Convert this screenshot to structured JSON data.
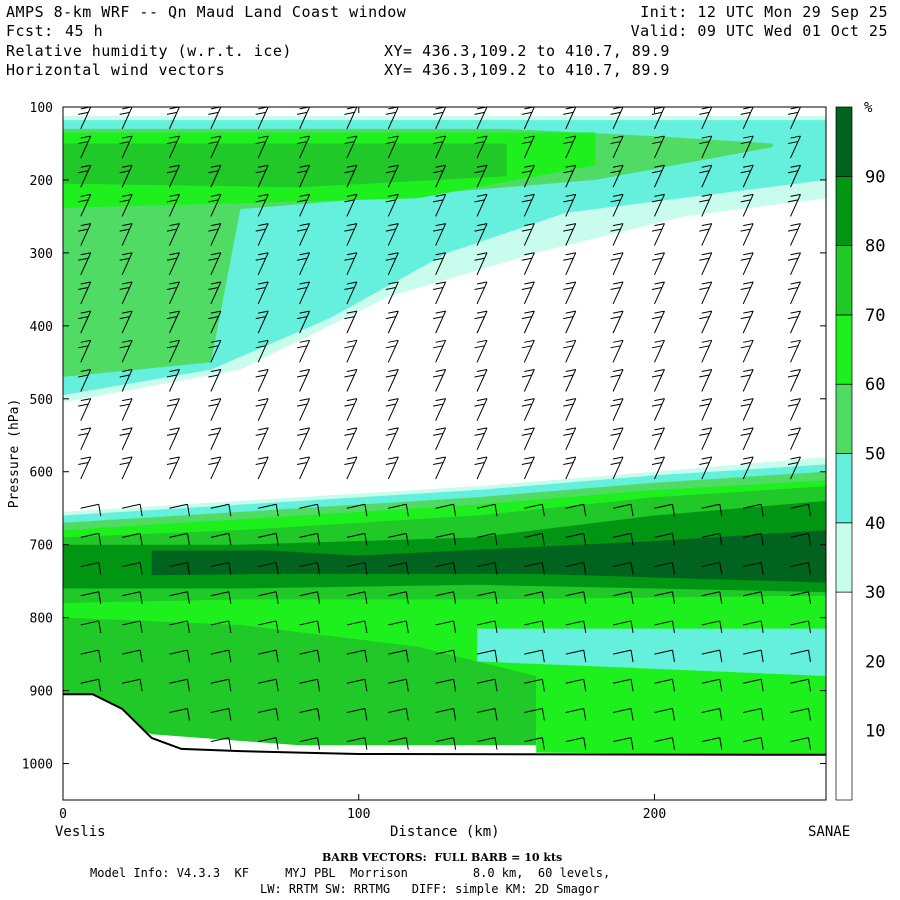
{
  "header": {
    "title": "AMPS 8-km WRF -- Qn Maud Land Coast window",
    "forecast_label": "Fcst:",
    "forecast_hours": "45 h",
    "field1": "Relative humidity (w.r.t. ice)",
    "field2": "Horizontal wind vectors",
    "init": "Init: 12 UTC Mon 29 Sep 25",
    "valid": "Valid: 09 UTC Wed 01 Oct 25",
    "xy1": "XY= 436.3,109.2 to 410.7, 89.9",
    "xy2": "XY= 436.3,109.2 to 410.7, 89.9"
  },
  "footer": {
    "barb_note": "BARB VECTORS:  FULL BARB = 10 kts",
    "model_info": "Model Info: V4.3.3  KF     MYJ PBL  Morrison         8.0 km,  60 levels,",
    "physics": "LW: RRTM SW: RRTMG   DIFF: simple KM: 2D Smagor"
  },
  "chart_data": {
    "type": "heatmap",
    "title": "Relative humidity (w.r.t. ice) cross-section with horizontal wind vectors",
    "xlabel": "Distance (km)",
    "ylabel": "Pressure (hPa)",
    "xlim": [
      0,
      258
    ],
    "ylim": [
      1050,
      100
    ],
    "x_ticks": [
      0,
      100,
      200
    ],
    "x_tick_labels": [
      "0",
      "100",
      "200"
    ],
    "y_ticks": [
      100,
      200,
      300,
      400,
      500,
      600,
      700,
      800,
      900,
      1000
    ],
    "y_tick_labels": [
      "100",
      "200",
      "300",
      "400",
      "500",
      "600",
      "700",
      "800",
      "900",
      "1000"
    ],
    "left_endpoint": "Veslis",
    "right_endpoint": "SANAE",
    "colorbar": {
      "unit": "%",
      "levels": [
        30,
        40,
        50,
        60,
        70,
        80,
        90
      ],
      "labels": [
        "10",
        "20",
        "30",
        "40",
        "50",
        "60",
        "70",
        "80",
        "90"
      ],
      "colors": [
        "#ffffff",
        "#c8fcec",
        "#64f0dc",
        "#50dc64",
        "#1ef01e",
        "#20c828",
        "#009614",
        "#00641e"
      ]
    },
    "terrain_surface_hPa": [
      {
        "x": 0,
        "p": 905
      },
      {
        "x": 10,
        "p": 905
      },
      {
        "x": 20,
        "p": 925
      },
      {
        "x": 30,
        "p": 965
      },
      {
        "x": 40,
        "p": 980
      },
      {
        "x": 60,
        "p": 983
      },
      {
        "x": 80,
        "p": 985
      },
      {
        "x": 100,
        "p": 987
      },
      {
        "x": 258,
        "p": 988
      }
    ],
    "rh_bands": [
      {
        "level": 30,
        "top": [
          {
            "x": 0,
            "p": 112
          },
          {
            "x": 258,
            "p": 112
          }
        ],
        "bot": [
          {
            "x": 0,
            "p": 505
          },
          {
            "x": 60,
            "p": 460
          },
          {
            "x": 110,
            "p": 360
          },
          {
            "x": 160,
            "p": 300
          },
          {
            "x": 210,
            "p": 250
          },
          {
            "x": 258,
            "p": 225
          }
        ]
      },
      {
        "level": 40,
        "top": [
          {
            "x": 0,
            "p": 118
          },
          {
            "x": 258,
            "p": 118
          }
        ],
        "bot": [
          {
            "x": 0,
            "p": 495
          },
          {
            "x": 50,
            "p": 460
          },
          {
            "x": 90,
            "p": 390
          },
          {
            "x": 130,
            "p": 300
          },
          {
            "x": 170,
            "p": 245
          },
          {
            "x": 258,
            "p": 200
          }
        ]
      },
      {
        "level": 50,
        "top": [
          {
            "x": 0,
            "p": 130
          },
          {
            "x": 150,
            "p": 130
          },
          {
            "x": 200,
            "p": 140
          },
          {
            "x": 240,
            "p": 150
          }
        ],
        "bot": [
          {
            "x": 0,
            "p": 470
          },
          {
            "x": 50,
            "p": 450
          },
          {
            "x": 60,
            "p": 240
          },
          {
            "x": 120,
            "p": 220
          },
          {
            "x": 180,
            "p": 200
          },
          {
            "x": 240,
            "p": 155
          }
        ]
      },
      {
        "level": 60,
        "top": [
          {
            "x": 0,
            "p": 135
          },
          {
            "x": 180,
            "p": 135
          }
        ],
        "bot": [
          {
            "x": 0,
            "p": 238
          },
          {
            "x": 60,
            "p": 232
          },
          {
            "x": 120,
            "p": 225
          },
          {
            "x": 180,
            "p": 180
          }
        ]
      },
      {
        "level": 70,
        "top": [
          {
            "x": 0,
            "p": 150
          },
          {
            "x": 150,
            "p": 150
          }
        ],
        "bot": [
          {
            "x": 0,
            "p": 205
          },
          {
            "x": 80,
            "p": 210
          },
          {
            "x": 150,
            "p": 195
          }
        ]
      },
      {
        "level": 30,
        "top": [
          {
            "x": 0,
            "p": 655
          },
          {
            "x": 60,
            "p": 640
          },
          {
            "x": 140,
            "p": 620
          },
          {
            "x": 200,
            "p": 600
          },
          {
            "x": 258,
            "p": 580
          }
        ],
        "bot": [
          {
            "x": 0,
            "p": 905
          },
          {
            "x": 258,
            "p": 988
          }
        ]
      },
      {
        "level": 40,
        "top": [
          {
            "x": 0,
            "p": 660
          },
          {
            "x": 60,
            "p": 645
          },
          {
            "x": 140,
            "p": 625
          },
          {
            "x": 200,
            "p": 605
          },
          {
            "x": 258,
            "p": 590
          }
        ],
        "bot": [
          {
            "x": 0,
            "p": 905
          },
          {
            "x": 258,
            "p": 988
          }
        ]
      },
      {
        "level": 50,
        "top": [
          {
            "x": 0,
            "p": 670
          },
          {
            "x": 60,
            "p": 655
          },
          {
            "x": 140,
            "p": 635
          },
          {
            "x": 200,
            "p": 615
          },
          {
            "x": 258,
            "p": 600
          }
        ],
        "bot": [
          {
            "x": 0,
            "p": 905
          },
          {
            "x": 258,
            "p": 988
          }
        ]
      },
      {
        "level": 60,
        "top": [
          {
            "x": 0,
            "p": 680
          },
          {
            "x": 60,
            "p": 665
          },
          {
            "x": 140,
            "p": 645
          },
          {
            "x": 200,
            "p": 625
          },
          {
            "x": 258,
            "p": 612
          }
        ],
        "bot": [
          {
            "x": 0,
            "p": 905
          },
          {
            "x": 258,
            "p": 988
          }
        ]
      },
      {
        "level": 70,
        "top": [
          {
            "x": 0,
            "p": 690
          },
          {
            "x": 60,
            "p": 680
          },
          {
            "x": 140,
            "p": 660
          },
          {
            "x": 200,
            "p": 635
          },
          {
            "x": 258,
            "p": 620
          }
        ],
        "bot": [
          {
            "x": 0,
            "p": 780
          },
          {
            "x": 60,
            "p": 775
          },
          {
            "x": 140,
            "p": 775
          },
          {
            "x": 258,
            "p": 770
          }
        ]
      },
      {
        "level": 80,
        "top": [
          {
            "x": 0,
            "p": 700
          },
          {
            "x": 60,
            "p": 700
          },
          {
            "x": 140,
            "p": 690
          },
          {
            "x": 200,
            "p": 660
          },
          {
            "x": 258,
            "p": 640
          }
        ],
        "bot": [
          {
            "x": 0,
            "p": 760
          },
          {
            "x": 60,
            "p": 760
          },
          {
            "x": 140,
            "p": 755
          },
          {
            "x": 258,
            "p": 765
          }
        ]
      },
      {
        "level": 90,
        "top": [
          {
            "x": 30,
            "p": 708
          },
          {
            "x": 70,
            "p": 708
          },
          {
            "x": 100,
            "p": 715
          },
          {
            "x": 150,
            "p": 705
          },
          {
            "x": 200,
            "p": 695
          },
          {
            "x": 258,
            "p": 680
          }
        ],
        "bot": [
          {
            "x": 30,
            "p": 742
          },
          {
            "x": 70,
            "p": 740
          },
          {
            "x": 100,
            "p": 740
          },
          {
            "x": 160,
            "p": 740
          },
          {
            "x": 258,
            "p": 752
          }
        ]
      },
      {
        "level": 70,
        "top": [
          {
            "x": 0,
            "p": 800
          },
          {
            "x": 60,
            "p": 810
          },
          {
            "x": 120,
            "p": 840
          },
          {
            "x": 160,
            "p": 880
          }
        ],
        "bot": [
          {
            "x": 0,
            "p": 905
          },
          {
            "x": 30,
            "p": 960
          },
          {
            "x": 80,
            "p": 975
          },
          {
            "x": 160,
            "p": 975
          }
        ]
      },
      {
        "level": 60,
        "top": [
          {
            "x": 160,
            "p": 890
          },
          {
            "x": 258,
            "p": 900
          }
        ],
        "bot": [
          {
            "x": 160,
            "p": 985
          },
          {
            "x": 258,
            "p": 988
          }
        ]
      },
      {
        "level": 40,
        "top": [
          {
            "x": 140,
            "p": 815
          },
          {
            "x": 258,
            "p": 815
          }
        ],
        "bot": [
          {
            "x": 140,
            "p": 860
          },
          {
            "x": 258,
            "p": 880
          }
        ]
      }
    ],
    "wind_barb_columns_x_km": [
      6,
      20,
      36,
      50,
      66,
      80,
      96,
      110,
      126,
      140,
      156,
      170,
      186,
      200,
      216,
      230,
      246
    ],
    "wind_barb_levels_hPa": [
      130,
      170,
      210,
      250,
      290,
      330,
      370,
      410,
      450,
      490,
      530,
      570,
      610,
      650,
      690,
      730,
      770,
      810,
      850,
      890,
      930,
      970
    ]
  }
}
